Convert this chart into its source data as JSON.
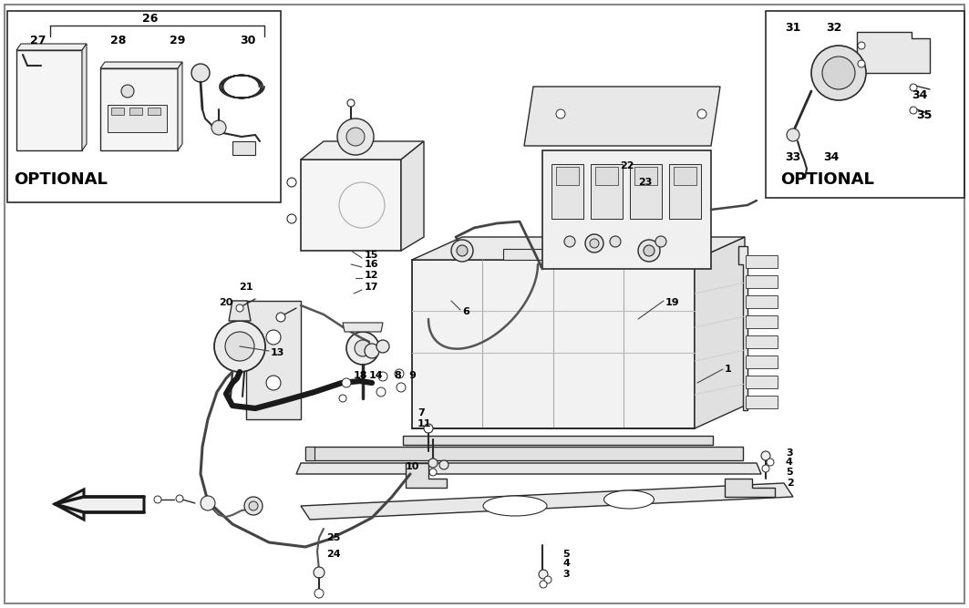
{
  "background_color": "#ffffff",
  "figsize": [
    10.63,
    6.67
  ],
  "dpi": 100,
  "line_color": "#2a2a2a",
  "light_gray": "#d8d8d8",
  "mid_gray": "#bbbbbb",
  "dark_gray": "#555555"
}
